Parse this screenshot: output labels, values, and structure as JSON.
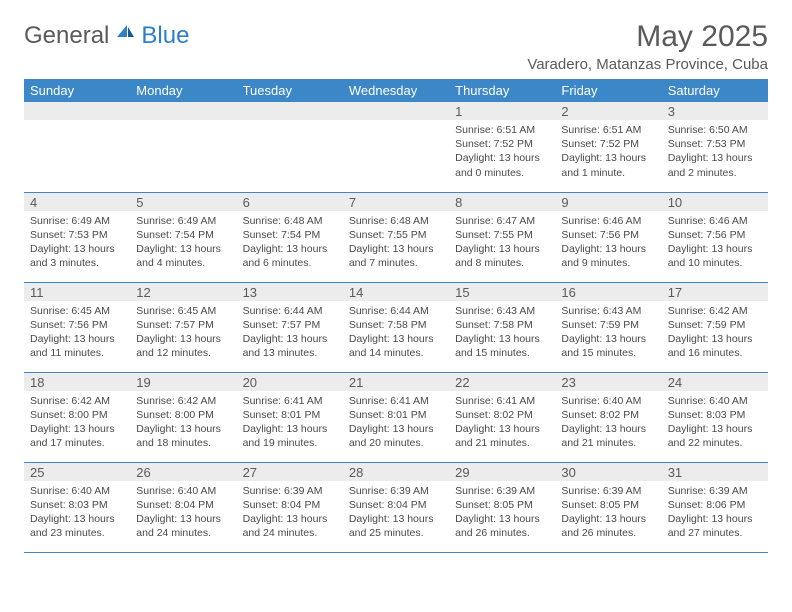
{
  "brand": {
    "word1": "General",
    "word2": "Blue"
  },
  "title": "May 2025",
  "subtitle": "Varadero, Matanzas Province, Cuba",
  "colors": {
    "header_bg": "#3b87c8",
    "header_text": "#ffffff",
    "daynum_bg": "#ececec",
    "text": "#5a5a5a",
    "border": "#3b87c8",
    "page_bg": "#ffffff"
  },
  "weekdays": [
    "Sunday",
    "Monday",
    "Tuesday",
    "Wednesday",
    "Thursday",
    "Friday",
    "Saturday"
  ],
  "weeks": [
    [
      {
        "n": "",
        "l1": "",
        "l2": "",
        "l3": "",
        "l4": ""
      },
      {
        "n": "",
        "l1": "",
        "l2": "",
        "l3": "",
        "l4": ""
      },
      {
        "n": "",
        "l1": "",
        "l2": "",
        "l3": "",
        "l4": ""
      },
      {
        "n": "",
        "l1": "",
        "l2": "",
        "l3": "",
        "l4": ""
      },
      {
        "n": "1",
        "l1": "Sunrise: 6:51 AM",
        "l2": "Sunset: 7:52 PM",
        "l3": "Daylight: 13 hours",
        "l4": "and 0 minutes."
      },
      {
        "n": "2",
        "l1": "Sunrise: 6:51 AM",
        "l2": "Sunset: 7:52 PM",
        "l3": "Daylight: 13 hours",
        "l4": "and 1 minute."
      },
      {
        "n": "3",
        "l1": "Sunrise: 6:50 AM",
        "l2": "Sunset: 7:53 PM",
        "l3": "Daylight: 13 hours",
        "l4": "and 2 minutes."
      }
    ],
    [
      {
        "n": "4",
        "l1": "Sunrise: 6:49 AM",
        "l2": "Sunset: 7:53 PM",
        "l3": "Daylight: 13 hours",
        "l4": "and 3 minutes."
      },
      {
        "n": "5",
        "l1": "Sunrise: 6:49 AM",
        "l2": "Sunset: 7:54 PM",
        "l3": "Daylight: 13 hours",
        "l4": "and 4 minutes."
      },
      {
        "n": "6",
        "l1": "Sunrise: 6:48 AM",
        "l2": "Sunset: 7:54 PM",
        "l3": "Daylight: 13 hours",
        "l4": "and 6 minutes."
      },
      {
        "n": "7",
        "l1": "Sunrise: 6:48 AM",
        "l2": "Sunset: 7:55 PM",
        "l3": "Daylight: 13 hours",
        "l4": "and 7 minutes."
      },
      {
        "n": "8",
        "l1": "Sunrise: 6:47 AM",
        "l2": "Sunset: 7:55 PM",
        "l3": "Daylight: 13 hours",
        "l4": "and 8 minutes."
      },
      {
        "n": "9",
        "l1": "Sunrise: 6:46 AM",
        "l2": "Sunset: 7:56 PM",
        "l3": "Daylight: 13 hours",
        "l4": "and 9 minutes."
      },
      {
        "n": "10",
        "l1": "Sunrise: 6:46 AM",
        "l2": "Sunset: 7:56 PM",
        "l3": "Daylight: 13 hours",
        "l4": "and 10 minutes."
      }
    ],
    [
      {
        "n": "11",
        "l1": "Sunrise: 6:45 AM",
        "l2": "Sunset: 7:56 PM",
        "l3": "Daylight: 13 hours",
        "l4": "and 11 minutes."
      },
      {
        "n": "12",
        "l1": "Sunrise: 6:45 AM",
        "l2": "Sunset: 7:57 PM",
        "l3": "Daylight: 13 hours",
        "l4": "and 12 minutes."
      },
      {
        "n": "13",
        "l1": "Sunrise: 6:44 AM",
        "l2": "Sunset: 7:57 PM",
        "l3": "Daylight: 13 hours",
        "l4": "and 13 minutes."
      },
      {
        "n": "14",
        "l1": "Sunrise: 6:44 AM",
        "l2": "Sunset: 7:58 PM",
        "l3": "Daylight: 13 hours",
        "l4": "and 14 minutes."
      },
      {
        "n": "15",
        "l1": "Sunrise: 6:43 AM",
        "l2": "Sunset: 7:58 PM",
        "l3": "Daylight: 13 hours",
        "l4": "and 15 minutes."
      },
      {
        "n": "16",
        "l1": "Sunrise: 6:43 AM",
        "l2": "Sunset: 7:59 PM",
        "l3": "Daylight: 13 hours",
        "l4": "and 15 minutes."
      },
      {
        "n": "17",
        "l1": "Sunrise: 6:42 AM",
        "l2": "Sunset: 7:59 PM",
        "l3": "Daylight: 13 hours",
        "l4": "and 16 minutes."
      }
    ],
    [
      {
        "n": "18",
        "l1": "Sunrise: 6:42 AM",
        "l2": "Sunset: 8:00 PM",
        "l3": "Daylight: 13 hours",
        "l4": "and 17 minutes."
      },
      {
        "n": "19",
        "l1": "Sunrise: 6:42 AM",
        "l2": "Sunset: 8:00 PM",
        "l3": "Daylight: 13 hours",
        "l4": "and 18 minutes."
      },
      {
        "n": "20",
        "l1": "Sunrise: 6:41 AM",
        "l2": "Sunset: 8:01 PM",
        "l3": "Daylight: 13 hours",
        "l4": "and 19 minutes."
      },
      {
        "n": "21",
        "l1": "Sunrise: 6:41 AM",
        "l2": "Sunset: 8:01 PM",
        "l3": "Daylight: 13 hours",
        "l4": "and 20 minutes."
      },
      {
        "n": "22",
        "l1": "Sunrise: 6:41 AM",
        "l2": "Sunset: 8:02 PM",
        "l3": "Daylight: 13 hours",
        "l4": "and 21 minutes."
      },
      {
        "n": "23",
        "l1": "Sunrise: 6:40 AM",
        "l2": "Sunset: 8:02 PM",
        "l3": "Daylight: 13 hours",
        "l4": "and 21 minutes."
      },
      {
        "n": "24",
        "l1": "Sunrise: 6:40 AM",
        "l2": "Sunset: 8:03 PM",
        "l3": "Daylight: 13 hours",
        "l4": "and 22 minutes."
      }
    ],
    [
      {
        "n": "25",
        "l1": "Sunrise: 6:40 AM",
        "l2": "Sunset: 8:03 PM",
        "l3": "Daylight: 13 hours",
        "l4": "and 23 minutes."
      },
      {
        "n": "26",
        "l1": "Sunrise: 6:40 AM",
        "l2": "Sunset: 8:04 PM",
        "l3": "Daylight: 13 hours",
        "l4": "and 24 minutes."
      },
      {
        "n": "27",
        "l1": "Sunrise: 6:39 AM",
        "l2": "Sunset: 8:04 PM",
        "l3": "Daylight: 13 hours",
        "l4": "and 24 minutes."
      },
      {
        "n": "28",
        "l1": "Sunrise: 6:39 AM",
        "l2": "Sunset: 8:04 PM",
        "l3": "Daylight: 13 hours",
        "l4": "and 25 minutes."
      },
      {
        "n": "29",
        "l1": "Sunrise: 6:39 AM",
        "l2": "Sunset: 8:05 PM",
        "l3": "Daylight: 13 hours",
        "l4": "and 26 minutes."
      },
      {
        "n": "30",
        "l1": "Sunrise: 6:39 AM",
        "l2": "Sunset: 8:05 PM",
        "l3": "Daylight: 13 hours",
        "l4": "and 26 minutes."
      },
      {
        "n": "31",
        "l1": "Sunrise: 6:39 AM",
        "l2": "Sunset: 8:06 PM",
        "l3": "Daylight: 13 hours",
        "l4": "and 27 minutes."
      }
    ]
  ]
}
